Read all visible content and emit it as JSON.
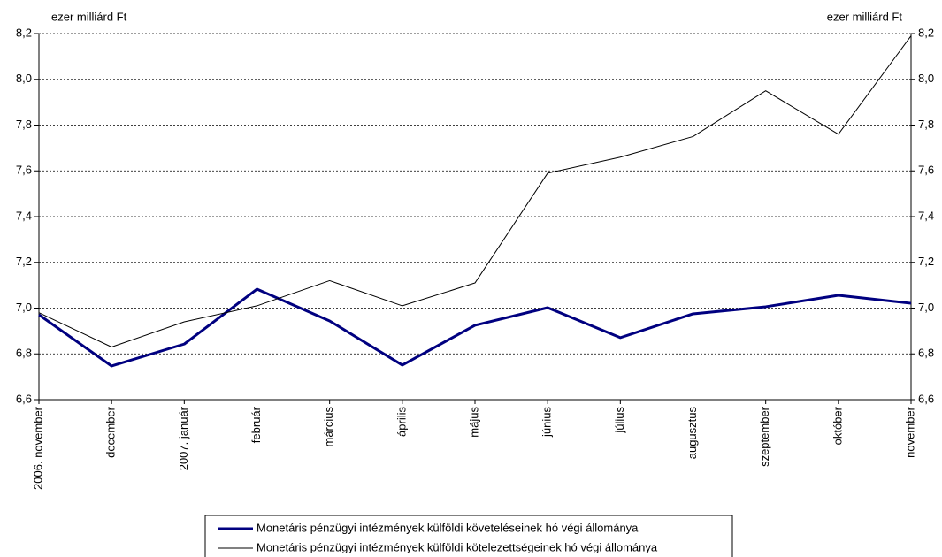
{
  "chart_data": {
    "type": "line",
    "y_label": "ezer milliárd Ft",
    "y2_label": "ezer milliárd Ft",
    "categories": [
      "2006. november",
      "december",
      "2007. január",
      "február",
      "március",
      "április",
      "május",
      "június",
      "július",
      "augusztus",
      "szeptember",
      "október",
      "november"
    ],
    "series": [
      {
        "name": "Monetáris pénzügyi intézmények külföldi követeléseinek hó végi állománya",
        "color": "#000080",
        "values": [
          6.971,
          6.747,
          6.843,
          7.083,
          6.944,
          6.751,
          6.925,
          7.002,
          6.871,
          6.975,
          7.006,
          7.056,
          7.021
        ]
      },
      {
        "name": "Monetáris pénzügyi intézmények külföldi kötelezettségeinek hó végi állománya",
        "color": "#000000",
        "values": [
          6.98,
          6.83,
          6.94,
          7.01,
          7.12,
          7.01,
          7.11,
          7.59,
          7.66,
          7.75,
          7.95,
          7.76,
          8.19
        ]
      }
    ],
    "ylim": [
      6.6,
      8.2
    ],
    "yticks": [
      {
        "value": 6.6,
        "label": "6,6"
      },
      {
        "value": 6.8,
        "label": "6,8"
      },
      {
        "value": 7.0,
        "label": "7,0"
      },
      {
        "value": 7.2,
        "label": "7,2"
      },
      {
        "value": 7.4,
        "label": "7,4"
      },
      {
        "value": 7.6,
        "label": "7,6"
      },
      {
        "value": 7.8,
        "label": "7,8"
      },
      {
        "value": 8.0,
        "label": "8,0"
      },
      {
        "value": 8.2,
        "label": "8,2"
      }
    ],
    "y2lim": [
      6.6,
      8.2
    ],
    "y2ticks": [
      {
        "value": 6.6,
        "label": "6,6"
      },
      {
        "value": 6.8,
        "label": "6,8"
      },
      {
        "value": 7.0,
        "label": "7,0"
      },
      {
        "value": 7.2,
        "label": "7,2"
      },
      {
        "value": 7.4,
        "label": "7,4"
      },
      {
        "value": 7.6,
        "label": "7,6"
      },
      {
        "value": 7.8,
        "label": "7,8"
      },
      {
        "value": 8.0,
        "label": "8,0"
      },
      {
        "value": 8.2,
        "label": "8,2"
      }
    ],
    "grid": true
  }
}
